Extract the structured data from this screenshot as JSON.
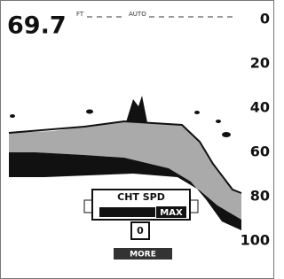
{
  "header": {
    "depth": "69.7",
    "unit": "FT",
    "mode": "AUTO"
  },
  "scale": {
    "labels": [
      "0",
      "20",
      "40",
      "60",
      "80",
      "100"
    ]
  },
  "dialog": {
    "title": "CHT SPD",
    "setting": "MAX",
    "value": "0"
  },
  "button": {
    "label": "MORE"
  }
}
